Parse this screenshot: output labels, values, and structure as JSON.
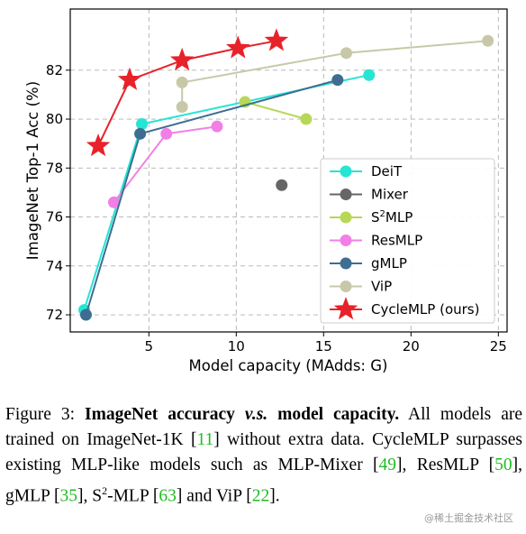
{
  "chart_data": {
    "type": "line",
    "xlabel": "Model capacity (MAdds: G)",
    "ylabel": "ImageNet Top-1 Acc (%)",
    "xlim": [
      0.5,
      25.5
    ],
    "ylim": [
      71.3,
      84.5
    ],
    "x_ticks": [
      5,
      10,
      15,
      20,
      25
    ],
    "y_ticks": [
      72,
      74,
      76,
      78,
      80,
      82
    ],
    "grid": true,
    "legend_position": "lower-right",
    "series": [
      {
        "name": "DeiT",
        "color": "#25e5d4",
        "marker": "circle",
        "x": [
          1.3,
          4.6,
          17.6
        ],
        "y": [
          72.2,
          79.8,
          81.8
        ]
      },
      {
        "name": "Mixer",
        "color": "#666666",
        "marker": "circle",
        "x": [
          12.6
        ],
        "y": [
          77.3
        ]
      },
      {
        "name": "S²MLP",
        "sup_name": {
          "pre": "S",
          "sup": "2",
          "post": "MLP"
        },
        "color": "#b7d857",
        "marker": "circle",
        "x": [
          10.5,
          14.0
        ],
        "y": [
          80.7,
          80.0
        ]
      },
      {
        "name": "ResMLP",
        "color": "#f17fe7",
        "marker": "circle",
        "x": [
          3.0,
          6.0,
          8.9
        ],
        "y": [
          76.6,
          79.4,
          79.7
        ]
      },
      {
        "name": "gMLP",
        "color": "#3d6e91",
        "marker": "circle",
        "x": [
          1.4,
          4.5,
          15.8
        ],
        "y": [
          72.0,
          79.4,
          81.6
        ]
      },
      {
        "name": "ViP",
        "color": "#c8c8a8",
        "marker": "circle",
        "x": [
          6.9,
          6.9,
          16.3,
          24.4
        ],
        "y": [
          80.5,
          81.5,
          82.7,
          83.2
        ]
      },
      {
        "name": "CycleMLP (ours)",
        "color": "#e8222a",
        "marker": "star",
        "x": [
          2.1,
          3.9,
          6.9,
          10.1,
          12.3
        ],
        "y": [
          78.9,
          81.6,
          82.4,
          82.9,
          83.2
        ]
      }
    ]
  },
  "caption": {
    "figure_label": "Figure 3: ",
    "bold_1": "ImageNet accuracy ",
    "italic_vs": "v.s.",
    "bold_2": " model capacity.",
    "text_1": " All models are trained on ImageNet-1K [",
    "cite_11": "11",
    "text_2": "] without extra data. CycleMLP surpasses existing MLP-like models such as MLP-Mixer [",
    "cite_49": "49",
    "text_3": "], ResMLP [",
    "cite_50": "50",
    "text_4": "], gMLP [",
    "cite_35": "35",
    "text_5": "], S",
    "sup_2": "2",
    "text_6": "-MLP [",
    "cite_63": "63",
    "text_7": "] and ViP [",
    "cite_22": "22",
    "text_8": "]."
  },
  "watermark": "@稀土掘金技术社区"
}
